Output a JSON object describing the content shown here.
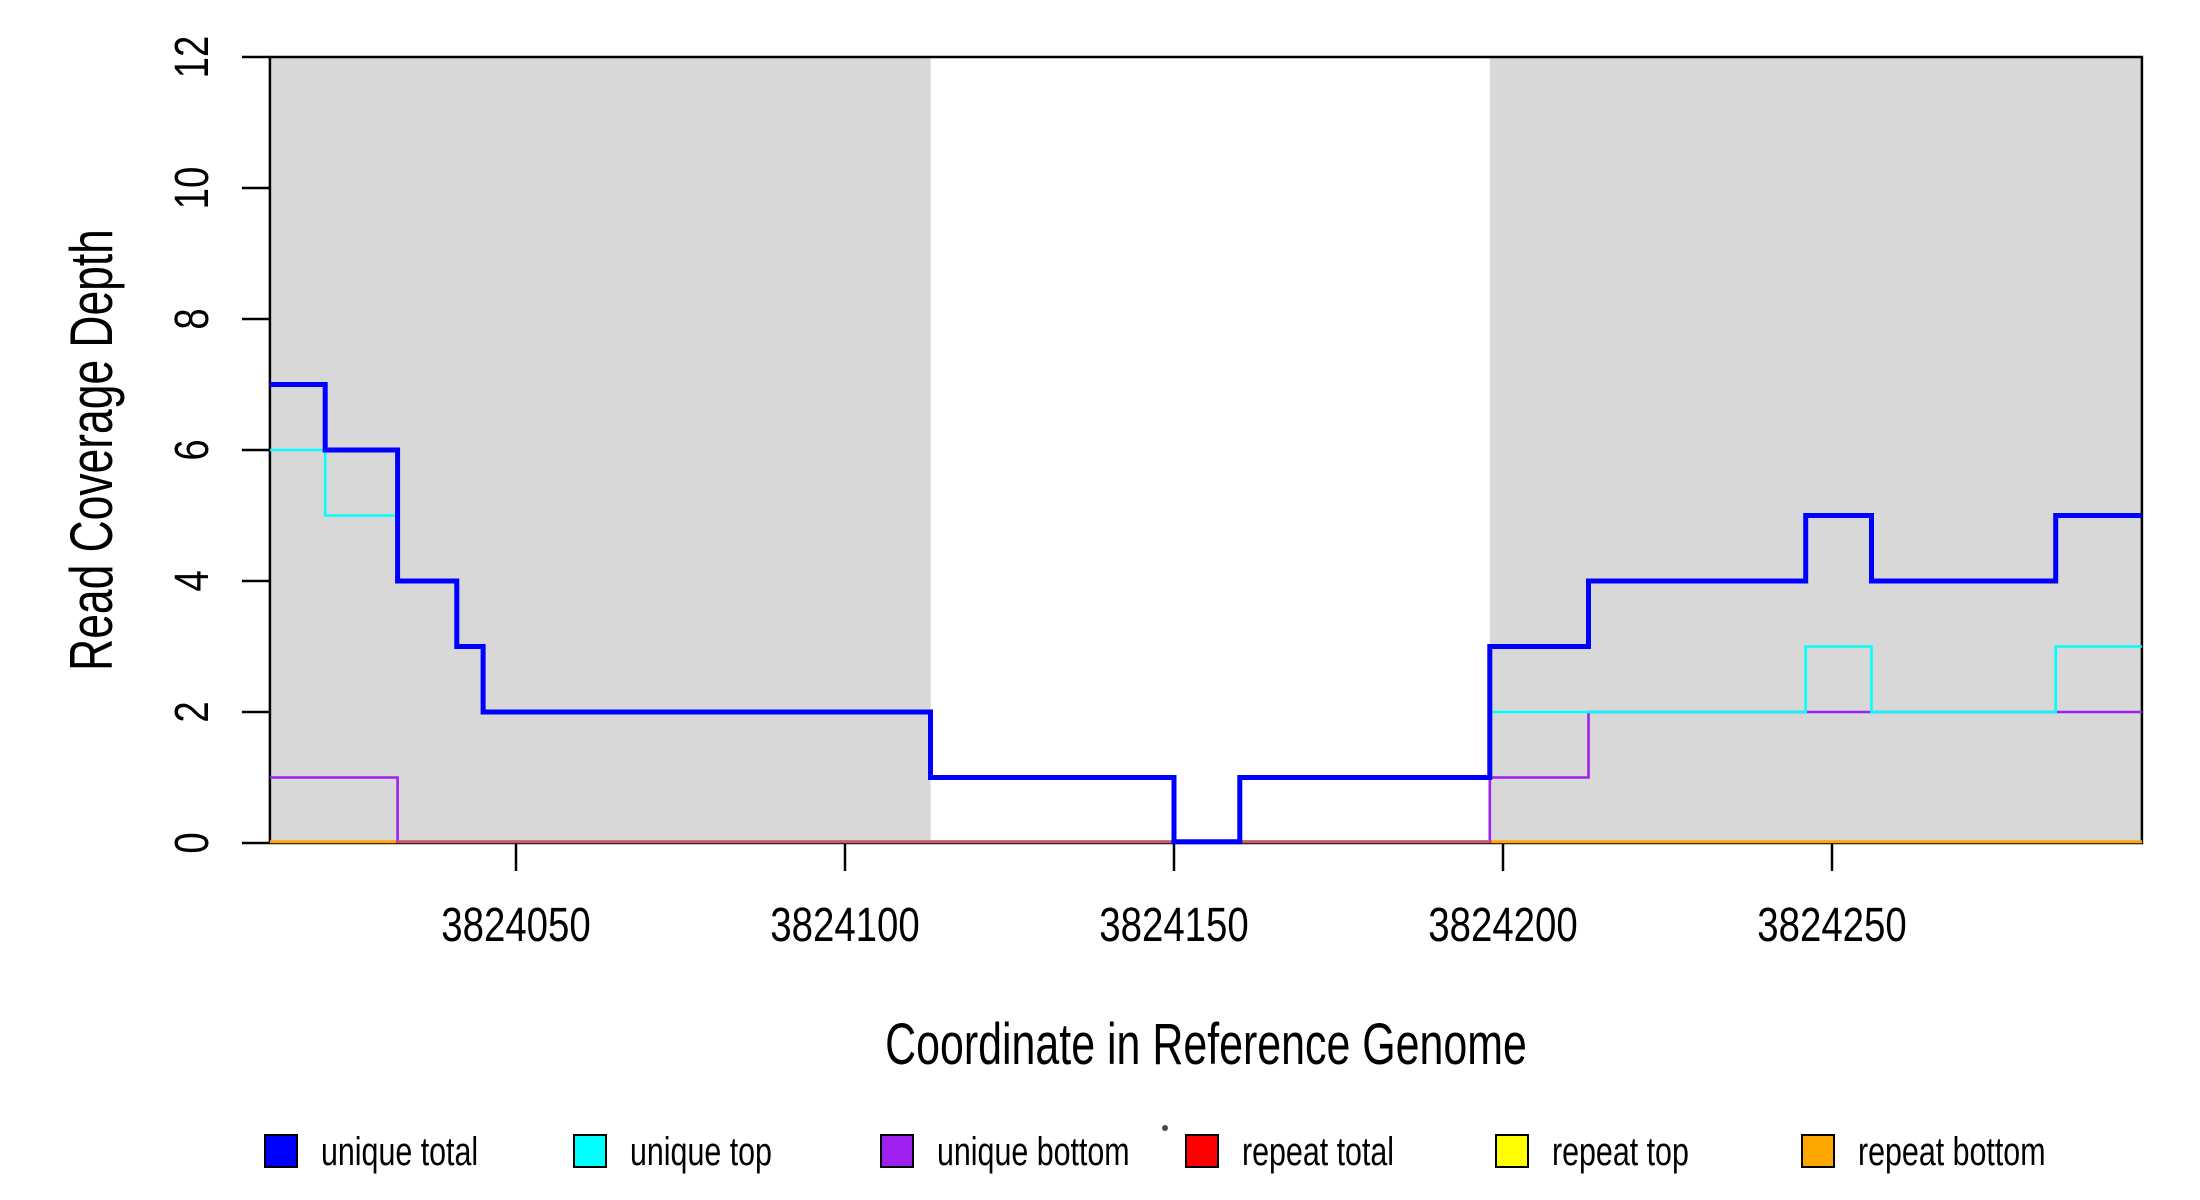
{
  "figure": {
    "background": "#FFFFFF"
  },
  "chart_data": {
    "type": "step-line",
    "title": "",
    "xlabel": "Coordinate in Reference Genome",
    "ylabel": "Read Coverage Depth",
    "x_axis": {
      "ticks": [
        3824050,
        3824100,
        3824150,
        3824200,
        3824250
      ],
      "tick_labels": [
        "3824050",
        "3824100",
        "3824150",
        "3824200",
        "3824250"
      ],
      "range": [
        3824012.6,
        3824297.1
      ],
      "grid": false
    },
    "y_axis": {
      "ticks": [
        0,
        2,
        4,
        6,
        8,
        10,
        12
      ],
      "tick_labels": [
        "0",
        "2",
        "4",
        "6",
        "8",
        "10",
        "12"
      ],
      "range": [
        0,
        12
      ],
      "grid": false
    },
    "shaded_regions": [
      {
        "name": "repeat-region-left",
        "x0": 3824012.6,
        "x1": 3824113,
        "color": "#D8D8D8"
      },
      {
        "name": "repeat-region-right",
        "x0": 3824198,
        "x1": 3824297.1,
        "color": "#D8D8D8"
      }
    ],
    "series": [
      {
        "name": "repeat top",
        "color": "#FFFF00",
        "line_width": 2,
        "points": [
          [
            3824012.6,
            0
          ],
          [
            3824297.1,
            0
          ]
        ]
      },
      {
        "name": "repeat total",
        "color": "#FF0000",
        "line_width": 2,
        "points": [
          [
            3824012.6,
            0
          ],
          [
            3824297.1,
            0
          ]
        ]
      },
      {
        "name": "repeat bottom",
        "color": "#FFA500",
        "line_width": 3,
        "points": [
          [
            3824012.6,
            0
          ],
          [
            3824297.1,
            0
          ]
        ]
      },
      {
        "name": "unique bottom",
        "color": "#A020F0",
        "line_width": 2.6,
        "points": [
          [
            3824012.6,
            1
          ],
          [
            3824032,
            1
          ],
          [
            3824032,
            0
          ],
          [
            3824198,
            0
          ],
          [
            3824198,
            1
          ],
          [
            3824213,
            1
          ],
          [
            3824213,
            2
          ],
          [
            3824297.1,
            2
          ]
        ]
      },
      {
        "name": "unique top",
        "color": "#00FFFF",
        "line_width": 2.6,
        "points": [
          [
            3824012.6,
            6
          ],
          [
            3824021,
            6
          ],
          [
            3824021,
            5
          ],
          [
            3824032,
            5
          ],
          [
            3824032,
            4
          ],
          [
            3824041,
            4
          ],
          [
            3824041,
            3
          ],
          [
            3824045,
            3
          ],
          [
            3824045,
            2
          ],
          [
            3824113,
            2
          ],
          [
            3824113,
            1
          ],
          [
            3824150,
            1
          ],
          [
            3824150,
            0
          ],
          [
            3824160,
            0
          ],
          [
            3824160,
            1
          ],
          [
            3824198,
            1
          ],
          [
            3824198,
            2
          ],
          [
            3824246,
            2
          ],
          [
            3824246,
            3
          ],
          [
            3824256,
            3
          ],
          [
            3824256,
            2
          ],
          [
            3824284,
            2
          ],
          [
            3824284,
            3
          ],
          [
            3824297.1,
            3
          ]
        ]
      },
      {
        "name": "unique total",
        "color": "#0000FF",
        "line_width": 5,
        "points": [
          [
            3824012.6,
            7
          ],
          [
            3824021,
            7
          ],
          [
            3824021,
            6
          ],
          [
            3824032,
            6
          ],
          [
            3824032,
            4
          ],
          [
            3824041,
            4
          ],
          [
            3824041,
            3
          ],
          [
            3824045,
            3
          ],
          [
            3824045,
            2
          ],
          [
            3824113,
            2
          ],
          [
            3824113,
            1
          ],
          [
            3824150,
            1
          ],
          [
            3824150,
            0
          ],
          [
            3824160,
            0
          ],
          [
            3824160,
            1
          ],
          [
            3824198,
            1
          ],
          [
            3824198,
            3
          ],
          [
            3824213,
            3
          ],
          [
            3824213,
            4
          ],
          [
            3824246,
            4
          ],
          [
            3824246,
            5
          ],
          [
            3824256,
            5
          ],
          [
            3824256,
            4
          ],
          [
            3824284,
            4
          ],
          [
            3824284,
            5
          ],
          [
            3824297.1,
            5
          ]
        ]
      }
    ],
    "baseline_overlay": {
      "note": "baseline between shaded regions renders as muted red (overlapping zero-depth lines)",
      "x0": 3824032,
      "x1": 3824198,
      "color": "#C8655F",
      "line_width": 2.6
    },
    "legend": {
      "position": "bottom",
      "items": [
        {
          "label": "unique total",
          "color": "#0000FF"
        },
        {
          "label": "unique top",
          "color": "#00FFFF"
        },
        {
          "label": "unique bottom",
          "color": "#A020F0"
        },
        {
          "label": "repeat total",
          "color": "#FF0000"
        },
        {
          "label": "repeat top",
          "color": "#FFFF00"
        },
        {
          "label": "repeat bottom",
          "color": "#FFA500"
        }
      ]
    },
    "decorations": {
      "stray_dot": {
        "x": 1165,
        "y": 1128,
        "color": "#4a4a4a"
      }
    }
  }
}
